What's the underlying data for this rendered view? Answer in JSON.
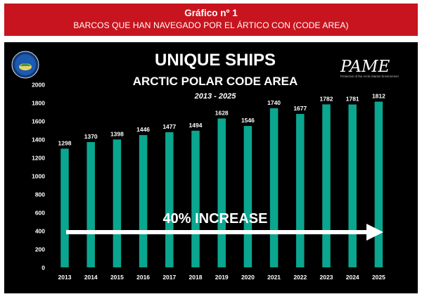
{
  "header": {
    "title": "Gráfico nº 1",
    "subtitle": "BARCOS QUE HAN NAVEGADO POR EL ÁRTICO CON (CODE AREA)"
  },
  "logo": {
    "name": "PAME",
    "tagline": "Protection of the Arctic Marine Environment"
  },
  "chart_data": {
    "type": "bar",
    "title": "UNIQUE SHIPS",
    "subtitle": "ARCTIC POLAR CODE AREA",
    "period": "2013 - 2025",
    "categories": [
      "2013",
      "2014",
      "2015",
      "2016",
      "2017",
      "2018",
      "2019",
      "2020",
      "2021",
      "2022",
      "2023",
      "2024",
      "2025"
    ],
    "values": [
      1298,
      1370,
      1398,
      1446,
      1477,
      1494,
      1628,
      1546,
      1740,
      1677,
      1782,
      1781,
      1812
    ],
    "ylim": [
      0,
      2000
    ],
    "yticks": [
      0,
      200,
      400,
      600,
      800,
      1000,
      1200,
      1400,
      1600,
      1800,
      2000
    ],
    "xlabel": "",
    "ylabel": "",
    "grid": false,
    "bar_color": "#0aa68f",
    "annotation": "40% INCREASE"
  },
  "colors": {
    "header_bg": "#c8141e",
    "panel_bg": "#000000",
    "bar": "#0aa68f",
    "text": "#ffffff"
  }
}
